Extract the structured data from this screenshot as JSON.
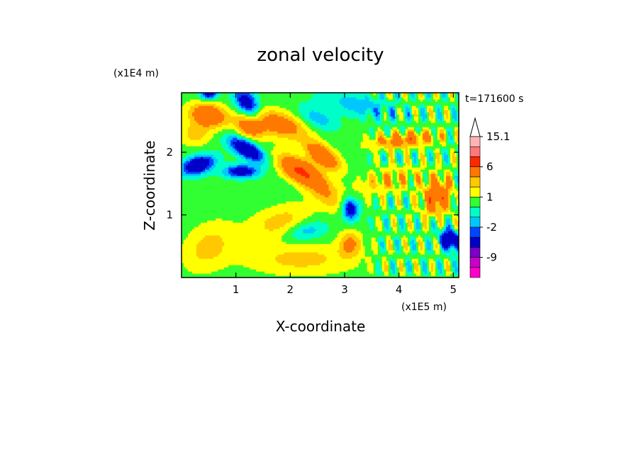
{
  "chart_data": {
    "type": "heatmap",
    "title": "zonal velocity",
    "xlabel": "X-coordinate",
    "ylabel": "Z-coordinate",
    "x_scale_label": "(x1E5 m)",
    "y_scale_label": "(x1E4 m)",
    "time_label": "t=171600 s",
    "xlim": [
      0,
      5.1
    ],
    "ylim": [
      0,
      2.95
    ],
    "xticks": [
      1,
      2,
      3,
      4,
      5
    ],
    "yticks": [
      1,
      2
    ],
    "colorbar": {
      "labels": [
        "15.1",
        "6",
        "1",
        "-2",
        "-9"
      ],
      "label_levels": [
        15.1,
        6,
        1,
        -2,
        -9
      ],
      "levels": [
        {
          "lo": -15,
          "hi": -12,
          "color": "#ff00c8"
        },
        {
          "lo": -12,
          "hi": -9,
          "color": "#c800c8"
        },
        {
          "lo": -9,
          "hi": -6,
          "color": "#7800c8"
        },
        {
          "lo": -6,
          "hi": -3,
          "color": "#0000c8"
        },
        {
          "lo": -3,
          "hi": -2,
          "color": "#0046ff"
        },
        {
          "lo": -2,
          "hi": -1,
          "color": "#00c8ff"
        },
        {
          "lo": -1,
          "hi": 0,
          "color": "#00ffc8"
        },
        {
          "lo": 0,
          "hi": 1,
          "color": "#32ff32"
        },
        {
          "lo": 1,
          "hi": 2,
          "color": "#ffff00"
        },
        {
          "lo": 2,
          "hi": 3,
          "color": "#ffc800"
        },
        {
          "lo": 3,
          "hi": 6,
          "color": "#ff7800"
        },
        {
          "lo": 6,
          "hi": 9,
          "color": "#ff2800"
        },
        {
          "lo": 9,
          "hi": 12,
          "color": "#ff7878"
        },
        {
          "lo": 12,
          "hi": 15.1,
          "color": "#ffb4b4"
        }
      ],
      "over_color": "#ffffff"
    },
    "features": [
      {
        "x": 0.5,
        "z": 2.6,
        "value": 5,
        "sx": 0.35,
        "sz": 0.18,
        "angle": -10
      },
      {
        "x": 1.25,
        "z": 2.4,
        "value": 4,
        "sx": 0.25,
        "sz": 0.15,
        "angle": -20
      },
      {
        "x": 2.2,
        "z": 1.7,
        "value": 6,
        "sx": 0.45,
        "sz": 0.18,
        "angle": -25
      },
      {
        "x": 2.6,
        "z": 1.95,
        "value": 5,
        "sx": 0.35,
        "sz": 0.15,
        "angle": -30
      },
      {
        "x": 1.8,
        "z": 2.45,
        "value": 4,
        "sx": 0.5,
        "sz": 0.2,
        "angle": -15
      },
      {
        "x": 1.2,
        "z": 2.05,
        "value": -6,
        "sx": 0.35,
        "sz": 0.13,
        "angle": -25
      },
      {
        "x": 1.1,
        "z": 1.7,
        "value": -5,
        "sx": 0.3,
        "sz": 0.1,
        "angle": 0
      },
      {
        "x": 0.3,
        "z": 1.8,
        "value": -6,
        "sx": 0.3,
        "sz": 0.14,
        "angle": 15
      },
      {
        "x": 1.2,
        "z": 2.8,
        "value": -5,
        "sx": 0.25,
        "sz": 0.16,
        "angle": -40
      },
      {
        "x": 0.5,
        "z": 2.95,
        "value": -5,
        "sx": 0.15,
        "sz": 0.1,
        "angle": 0
      },
      {
        "x": 3.1,
        "z": 1.1,
        "value": -5,
        "sx": 0.15,
        "sz": 0.18,
        "angle": 20
      },
      {
        "x": 4.95,
        "z": 0.6,
        "value": -6,
        "sx": 0.2,
        "sz": 0.15,
        "angle": -30
      },
      {
        "x": 4.7,
        "z": 1.3,
        "value": 5,
        "sx": 0.25,
        "sz": 0.3,
        "angle": -30
      },
      {
        "x": 4.1,
        "z": 2.2,
        "value": 4,
        "sx": 0.6,
        "sz": 0.12,
        "angle": 5
      },
      {
        "x": 3.3,
        "z": 2.75,
        "value": -2,
        "sx": 0.7,
        "sz": 0.18,
        "angle": -10
      },
      {
        "x": 2.5,
        "z": 2.55,
        "value": -2,
        "sx": 0.35,
        "sz": 0.15,
        "angle": -20
      },
      {
        "x": 2.2,
        "z": 0.3,
        "value": 2,
        "sx": 1.0,
        "sz": 0.25,
        "angle": 0
      },
      {
        "x": 0.5,
        "z": 0.5,
        "value": 2,
        "sx": 0.5,
        "sz": 0.35,
        "angle": 30
      },
      {
        "x": 1.8,
        "z": 0.9,
        "value": 2,
        "sx": 0.6,
        "sz": 0.25,
        "angle": 15
      },
      {
        "x": 2.3,
        "z": 0.75,
        "value": -2,
        "sx": 0.35,
        "sz": 0.15,
        "angle": 10
      },
      {
        "x": 3.1,
        "z": 0.55,
        "value": 3,
        "sx": 0.2,
        "sz": 0.2,
        "angle": 0
      },
      {
        "x": 3.8,
        "z": 1.55,
        "value": 2,
        "sx": 0.6,
        "sz": 0.2,
        "angle": 10
      },
      {
        "x": 0.25,
        "z": 2.3,
        "value": 2,
        "sx": 0.3,
        "sz": 0.2,
        "angle": 0
      },
      {
        "x": 2.7,
        "z": 1.3,
        "value": 2,
        "sx": 0.4,
        "sz": 0.2,
        "angle": -30
      }
    ],
    "background_value": 0.4
  }
}
